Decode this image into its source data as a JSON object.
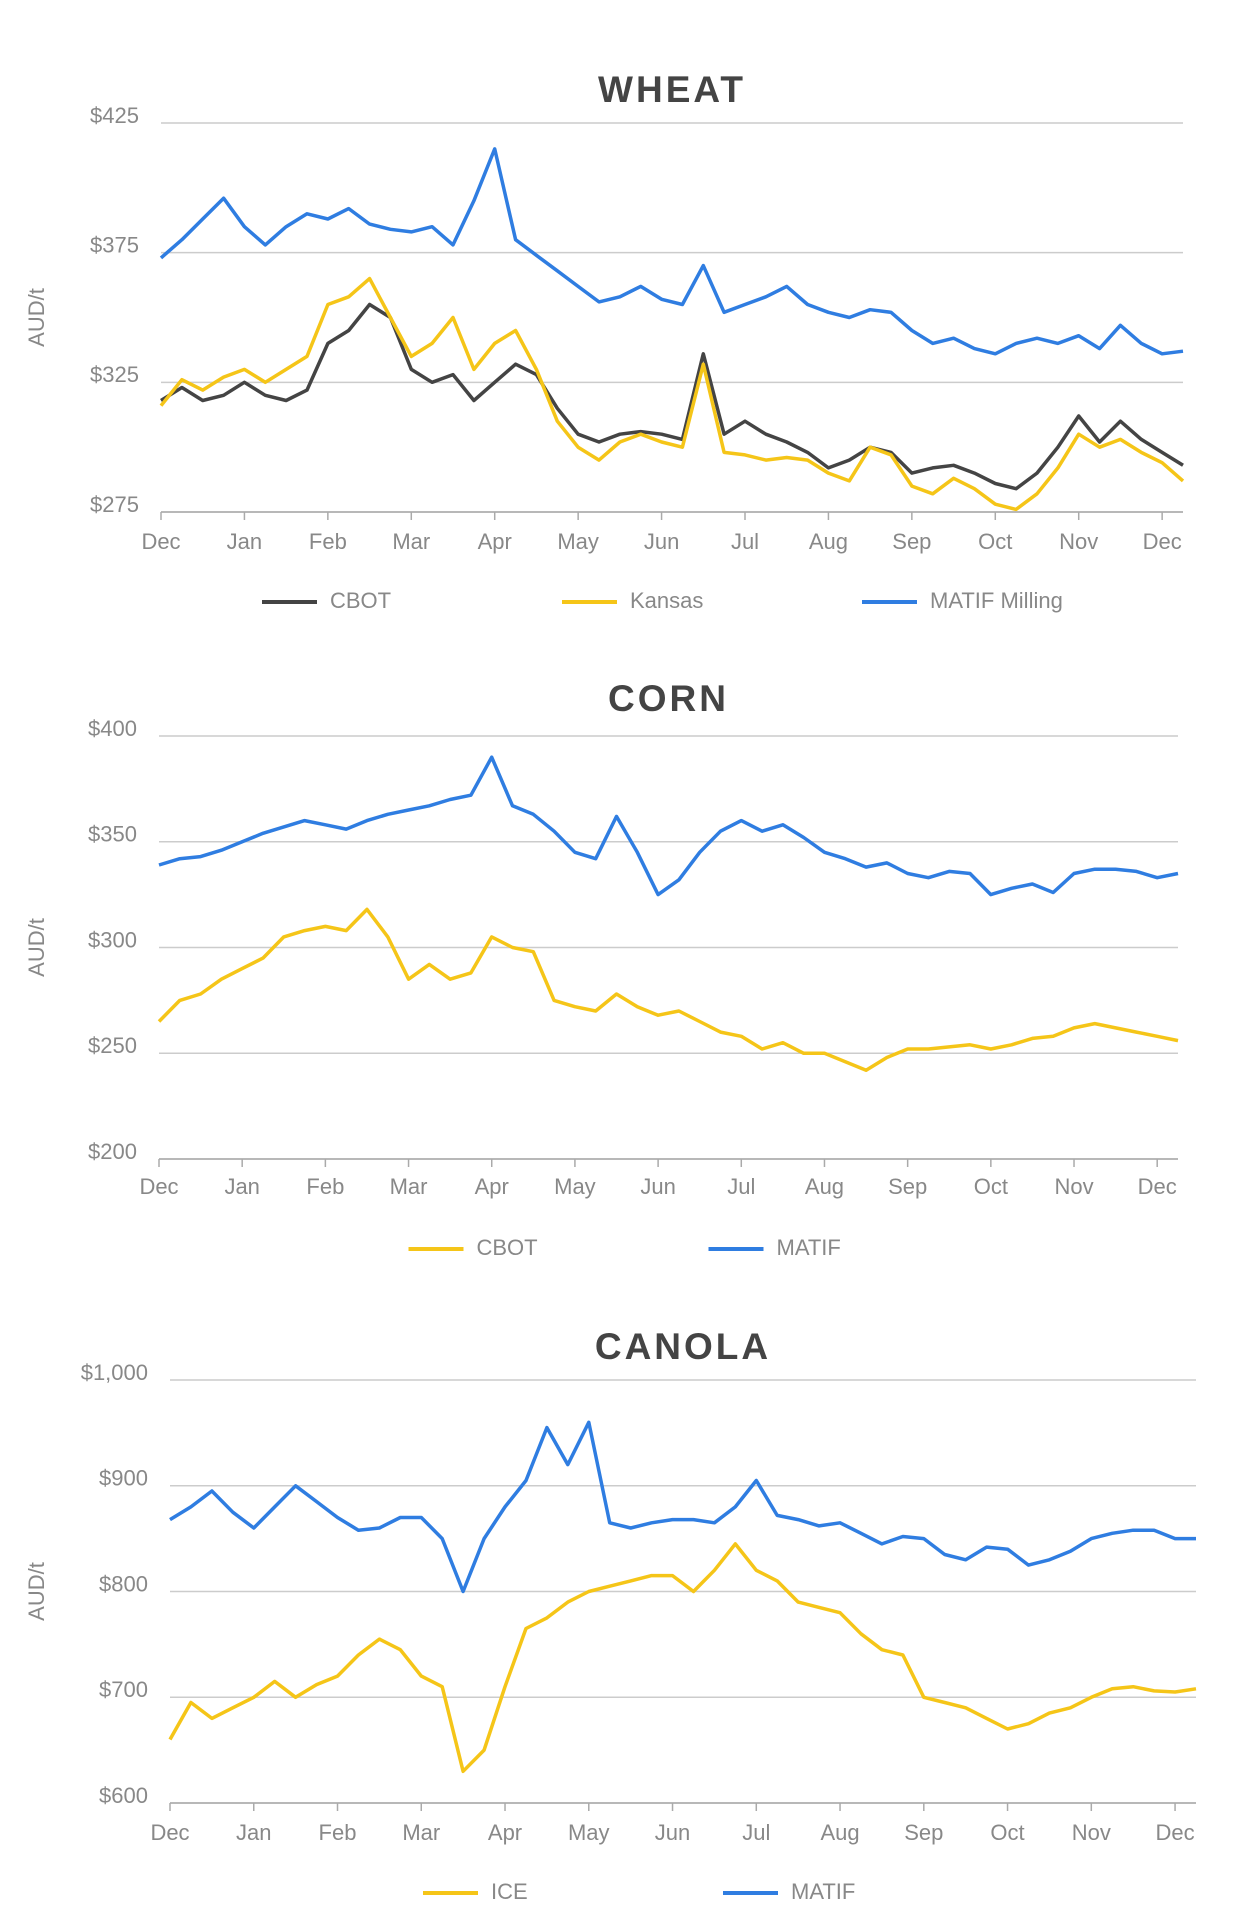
{
  "chart_data": [
    {
      "type": "line",
      "title": "WHEAT",
      "y_label": "AUD/t",
      "categories": [
        "Dec",
        null,
        null,
        null,
        "Jan",
        null,
        null,
        null,
        "Feb",
        null,
        null,
        null,
        "Mar",
        null,
        null,
        null,
        "Apr",
        null,
        null,
        null,
        "May",
        null,
        null,
        null,
        "Jun",
        null,
        null,
        null,
        "Jul",
        null,
        null,
        null,
        "Aug",
        null,
        null,
        null,
        "Sep",
        null,
        null,
        null,
        "Oct",
        null,
        null,
        null,
        "Nov",
        null,
        null,
        null,
        "Dec",
        null
      ],
      "series": [
        {
          "name": "CBOT",
          "color": "#444444",
          "values": [
            318,
            323,
            318,
            320,
            325,
            320,
            318,
            322,
            340,
            345,
            355,
            350,
            330,
            325,
            328,
            318,
            325,
            332,
            328,
            315,
            305,
            302,
            305,
            306,
            305,
            303,
            336,
            305,
            310,
            305,
            302,
            298,
            292,
            295,
            300,
            298,
            290,
            292,
            293,
            290,
            286,
            284,
            290,
            300,
            312,
            302,
            310,
            303,
            298,
            293
          ]
        },
        {
          "name": "Kansas",
          "color": "#f5c518",
          "values": [
            316,
            326,
            322,
            327,
            330,
            325,
            330,
            335,
            355,
            358,
            365,
            350,
            335,
            340,
            350,
            330,
            340,
            345,
            330,
            310,
            300,
            295,
            302,
            305,
            302,
            300,
            332,
            298,
            297,
            295,
            296,
            295,
            290,
            287,
            300,
            297,
            285,
            282,
            288,
            284,
            278,
            276,
            282,
            292,
            305,
            300,
            303,
            298,
            294,
            287
          ]
        },
        {
          "name": "MATIF Milling",
          "color": "#2f7de1",
          "values": [
            373,
            380,
            388,
            396,
            385,
            378,
            385,
            390,
            388,
            392,
            386,
            384,
            383,
            385,
            378,
            395,
            415,
            380,
            374,
            368,
            362,
            356,
            358,
            362,
            357,
            355,
            370,
            352,
            355,
            358,
            362,
            355,
            352,
            350,
            353,
            352,
            345,
            340,
            342,
            338,
            336,
            340,
            342,
            340,
            343,
            338,
            347,
            340,
            336,
            337
          ]
        }
      ],
      "ylim": [
        275,
        425
      ],
      "yticks": [
        {
          "value": 275,
          "label": "$275"
        },
        {
          "value": 325,
          "label": "$325"
        },
        {
          "value": 375,
          "label": "$375"
        },
        {
          "value": 425,
          "label": "$425"
        }
      ],
      "grid": true
    },
    {
      "type": "line",
      "title": "CORN",
      "y_label": "AUD/t",
      "categories": [
        "Dec",
        null,
        null,
        null,
        "Jan",
        null,
        null,
        null,
        "Feb",
        null,
        null,
        null,
        "Mar",
        null,
        null,
        null,
        "Apr",
        null,
        null,
        null,
        "May",
        null,
        null,
        null,
        "Jun",
        null,
        null,
        null,
        "Jul",
        null,
        null,
        null,
        "Aug",
        null,
        null,
        null,
        "Sep",
        null,
        null,
        null,
        "Oct",
        null,
        null,
        null,
        "Nov",
        null,
        null,
        null,
        "Dec",
        null
      ],
      "series": [
        {
          "name": "CBOT",
          "color": "#f5c518",
          "values": [
            265,
            275,
            278,
            285,
            290,
            295,
            305,
            308,
            310,
            308,
            318,
            305,
            285,
            292,
            285,
            288,
            305,
            300,
            298,
            275,
            272,
            270,
            278,
            272,
            268,
            270,
            265,
            260,
            258,
            252,
            255,
            250,
            250,
            246,
            242,
            248,
            252,
            252,
            253,
            254,
            252,
            254,
            257,
            258,
            262,
            264,
            262,
            260,
            258,
            256
          ]
        },
        {
          "name": "MATIF",
          "color": "#2f7de1",
          "values": [
            339,
            342,
            343,
            346,
            350,
            354,
            357,
            360,
            358,
            356,
            360,
            363,
            365,
            367,
            370,
            372,
            390,
            367,
            363,
            355,
            345,
            342,
            362,
            345,
            325,
            332,
            345,
            355,
            360,
            355,
            358,
            352,
            345,
            342,
            338,
            340,
            335,
            333,
            336,
            335,
            325,
            328,
            330,
            326,
            335,
            337,
            337,
            336,
            333,
            335
          ]
        }
      ],
      "ylim": [
        200,
        400
      ],
      "yticks": [
        {
          "value": 200,
          "label": "$200"
        },
        {
          "value": 250,
          "label": "$250"
        },
        {
          "value": 300,
          "label": "$300"
        },
        {
          "value": 350,
          "label": "$350"
        },
        {
          "value": 400,
          "label": "$400"
        }
      ],
      "grid": true
    },
    {
      "type": "line",
      "title": "CANOLA",
      "y_label": "AUD/t",
      "categories": [
        "Dec",
        null,
        null,
        null,
        "Jan",
        null,
        null,
        null,
        "Feb",
        null,
        null,
        null,
        "Mar",
        null,
        null,
        null,
        "Apr",
        null,
        null,
        null,
        "May",
        null,
        null,
        null,
        "Jun",
        null,
        null,
        null,
        "Jul",
        null,
        null,
        null,
        "Aug",
        null,
        null,
        null,
        "Sep",
        null,
        null,
        null,
        "Oct",
        null,
        null,
        null,
        "Nov",
        null,
        null,
        null,
        "Dec",
        null
      ],
      "series": [
        {
          "name": "ICE",
          "color": "#f5c518",
          "values": [
            660,
            695,
            680,
            690,
            700,
            715,
            700,
            712,
            720,
            740,
            755,
            745,
            720,
            710,
            630,
            650,
            710,
            765,
            775,
            790,
            800,
            805,
            810,
            815,
            815,
            800,
            820,
            845,
            820,
            810,
            790,
            785,
            780,
            760,
            745,
            740,
            700,
            695,
            690,
            680,
            670,
            675,
            685,
            690,
            700,
            708,
            710,
            706,
            705,
            708
          ]
        },
        {
          "name": "MATIF",
          "color": "#2f7de1",
          "values": [
            868,
            880,
            895,
            875,
            860,
            880,
            900,
            885,
            870,
            858,
            860,
            870,
            870,
            850,
            800,
            850,
            880,
            905,
            955,
            920,
            960,
            865,
            860,
            865,
            868,
            868,
            865,
            880,
            905,
            872,
            868,
            862,
            865,
            855,
            845,
            852,
            850,
            835,
            830,
            842,
            840,
            825,
            830,
            838,
            850,
            855,
            858,
            858,
            850,
            850
          ]
        }
      ],
      "ylim": [
        600,
        1000
      ],
      "yticks": [
        {
          "value": 600,
          "label": "$600"
        },
        {
          "value": 700,
          "label": "$700"
        },
        {
          "value": 800,
          "label": "$800"
        },
        {
          "value": 900,
          "label": "$900"
        },
        {
          "value": 1000,
          "label": "$1,000"
        }
      ],
      "grid": true
    }
  ]
}
